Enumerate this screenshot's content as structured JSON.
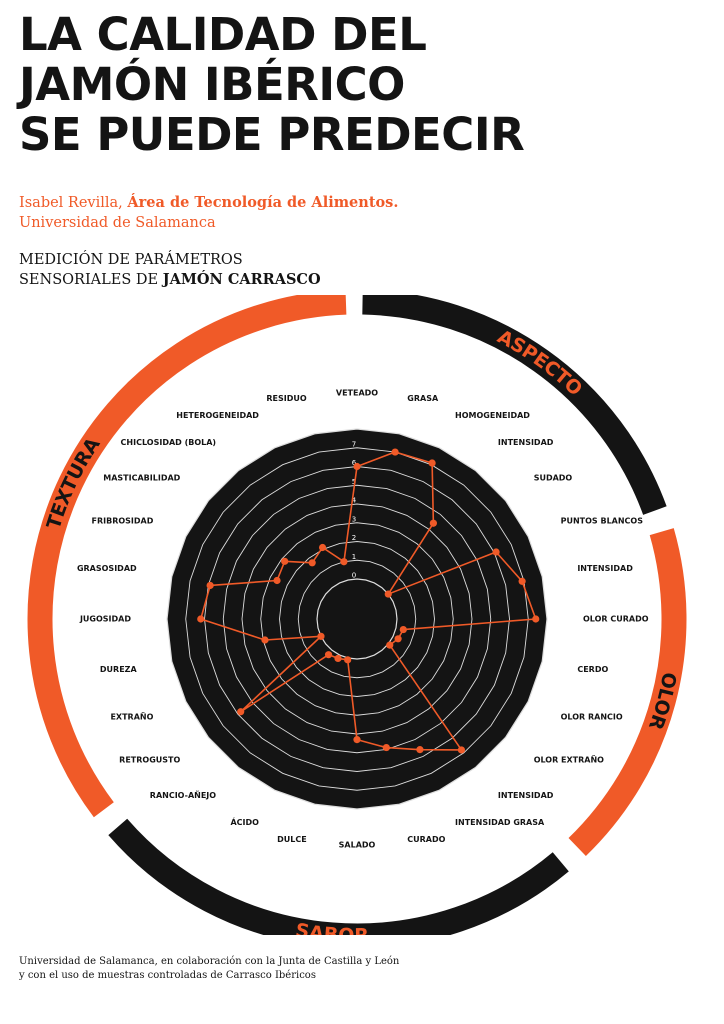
{
  "header": {
    "title_lines": [
      "LA CALIDAD DEL",
      "JAMÓN IBÉRICO",
      "SE PUEDE PREDECIR"
    ],
    "author": "Isabel Revilla, ",
    "department": "Área de Tecnología de Alimentos.",
    "university": "Universidad de Salamanca",
    "subtitle_line1": "MEDICIÓN DE PARÁMETROS",
    "subtitle_line2_prefix": "SENSORIALES DE ",
    "subtitle_line2_bold": "JAMÓN CARRASCO"
  },
  "footer": {
    "line1": "Universidad de Salamanca, en colaboración con la Junta de Castilla y León",
    "line2": "y con el uso de muestras controladas de Carrasco Ibéricos"
  },
  "colors": {
    "accent": "#f05a28",
    "dark": "#141414",
    "grid": "#dddddd"
  },
  "chart_data": {
    "type": "radar",
    "rlim": [
      0,
      8
    ],
    "ticks": [
      "0",
      "1",
      "2",
      "3",
      "4",
      "5",
      "6",
      "7",
      "8"
    ],
    "groups": [
      {
        "name": "ASPECTO",
        "color": "#141414",
        "text_color": "#f05a28"
      },
      {
        "name": "OLOR",
        "color": "#f05a28",
        "text_color": "#141414"
      },
      {
        "name": "SABOR",
        "color": "#141414",
        "text_color": "#f05a28"
      },
      {
        "name": "TEXTURA",
        "color": "#f05a28",
        "text_color": "#141414"
      }
    ],
    "categories": [
      "VETEADO",
      "GRASA",
      "HOMOGENEIDAD",
      "INTENSIDAD",
      "SUDADO",
      "PUNTOS BLANCOS",
      "INTENSIDAD",
      "OLOR CURADO",
      "CERDO",
      "OLOR RANCIO",
      "OLOR EXTRAÑO",
      "INTENSIDAD",
      "INTENSIDAD GRASA",
      "CURADO",
      "SALADO",
      "DULCE",
      "ÁCIDO",
      "RANCIO-AÑEJO",
      "RETROGUSTO",
      "EXTRAÑO",
      "DUREZA",
      "JUGOSIDAD",
      "GRASOSIDAD",
      "FRIBROSIDAD",
      "MASTICABILIDAD",
      "CHICLOSIDAD (BOLA)",
      "HETEROGENEIDAD",
      "RESIDUO"
    ],
    "values": [
      6.0,
      7.0,
      7.1,
      4.4,
      0.0,
      6.1,
      6.9,
      7.4,
      0.4,
      0.3,
      0.1,
      6.8,
      5.6,
      4.9,
      4.3,
      0.1,
      0.2,
      0.3,
      5.8,
      0.0,
      2.9,
      6.2,
      5.9,
      2.6,
      2.8,
      1.7,
      2.1,
      1.0
    ]
  }
}
